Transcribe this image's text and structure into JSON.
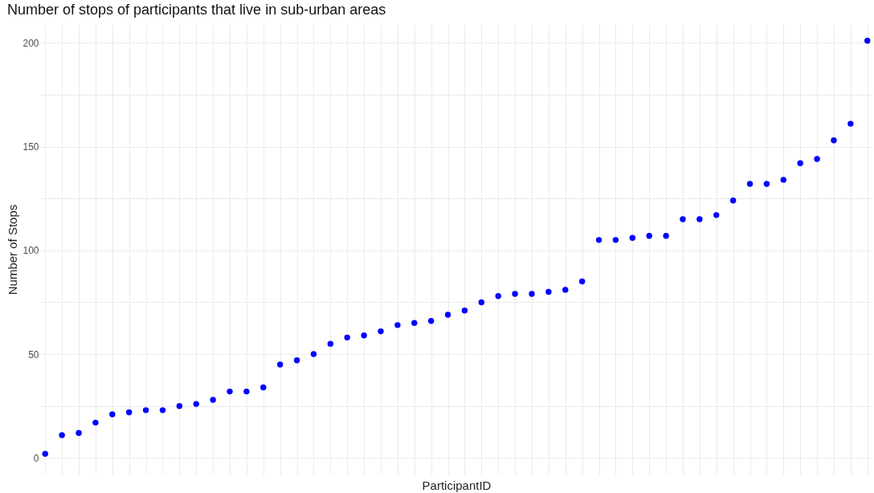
{
  "chart_data": {
    "type": "scatter",
    "title": "Number of stops of participants that live in sub-urban areas",
    "xlabel": "ParticipantID",
    "ylabel": "Number of Stops",
    "categories": [
      null,
      null,
      null,
      null,
      null,
      null,
      null,
      null,
      null,
      null,
      null,
      null,
      null,
      null,
      null,
      null,
      null,
      null,
      null,
      null,
      null,
      null,
      null,
      null,
      null,
      null,
      null,
      null,
      null,
      null,
      null,
      null,
      null,
      null,
      null,
      null,
      null,
      null,
      null,
      null,
      null,
      null,
      null,
      null,
      null,
      null,
      null,
      null,
      null,
      null
    ],
    "series": [
      {
        "color": "#0000ff",
        "values": [
          2,
          11,
          12,
          17,
          21,
          22,
          23,
          23,
          25,
          26,
          28,
          32,
          32,
          34,
          45,
          47,
          50,
          55,
          58,
          59,
          61,
          64,
          65,
          66,
          69,
          71,
          75,
          78,
          79,
          79,
          80,
          81,
          85,
          105,
          105,
          106,
          107,
          107,
          115,
          115,
          117,
          124,
          132,
          132,
          134,
          142,
          144,
          153,
          161,
          201
        ]
      }
    ],
    "ylim": [
      -8,
      209
    ],
    "yticks": [
      0,
      {
        "value": 25,
        "label": null
      },
      50,
      {
        "value": 75,
        "label": null
      },
      100,
      {
        "value": 125,
        "label": null
      },
      150,
      {
        "value": 175,
        "label": null
      },
      200
    ],
    "grid": true,
    "marker": "circle"
  }
}
